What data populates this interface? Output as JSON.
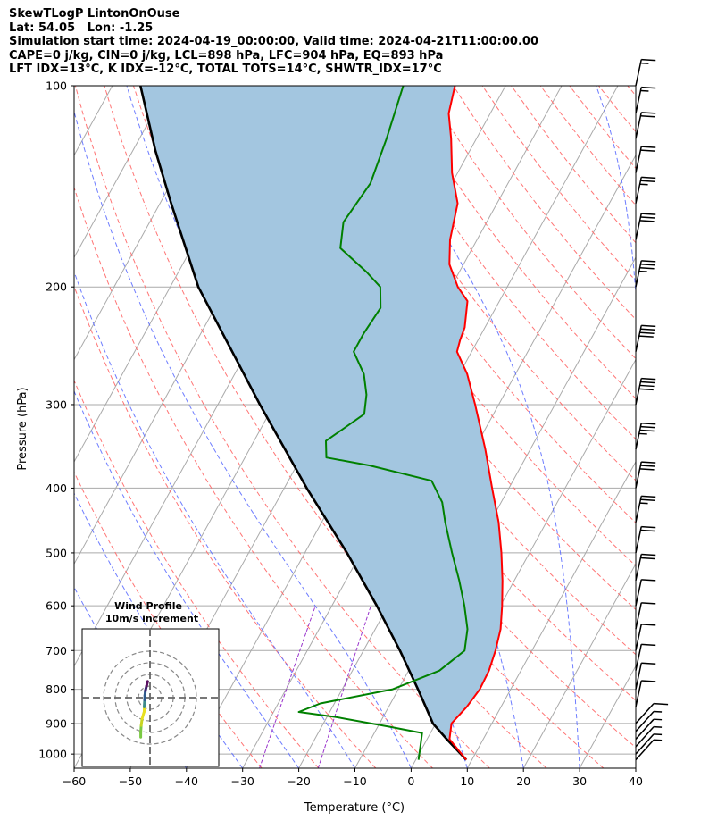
{
  "header": {
    "line1": "SkewTLogP LintonOnOuse",
    "line2": "Lat: 54.05   Lon: -1.25",
    "line3": "Simulation start time: 2024-04-19_00:00:00, Valid time: 2024-04-21T11:00:00.00",
    "line4": "CAPE=0 j/kg, CIN=0 j/kg, LCL=898 hPa, LFC=904 hPa, EQ=893 hPa",
    "line5": "LFT IDX=13°C, K IDX=-12°C, TOTAL TOTS=14°C, SHWTR_IDX=17°C"
  },
  "colors": {
    "temperature": "#ff0000",
    "dewpoint": "#008000",
    "parcel": "#000000",
    "cape_fill": "#a3c6e0",
    "dry_adiabat": "#ff6666",
    "moist_adiabat": "#5566ff",
    "mixing_ratio": "#9933cc",
    "isotherm": "#aaaaaa"
  },
  "chart_data": {
    "type": "line",
    "chart": "skew-t log-p",
    "xlabel": "Temperature (°C)",
    "ylabel": "Pressure (hPa)",
    "xlim": [
      -60,
      40
    ],
    "ylim": [
      1050,
      100
    ],
    "y_scale": "log",
    "grid": true,
    "x_ticks": [
      -60,
      -50,
      -40,
      -30,
      -20,
      -10,
      0,
      10,
      20,
      30,
      40
    ],
    "y_ticks": [
      1000,
      900,
      800,
      700,
      600,
      500,
      400,
      300,
      200,
      100
    ],
    "series": [
      {
        "role": "temperature",
        "points": [
          {
            "p": 1020,
            "t": 9
          },
          {
            "p": 950,
            "t": 4
          },
          {
            "p": 900,
            "t": 2.8
          },
          {
            "p": 850,
            "t": 3.9
          },
          {
            "p": 800,
            "t": 4.5
          },
          {
            "p": 750,
            "t": 4.3
          },
          {
            "p": 700,
            "t": 3.5
          },
          {
            "p": 650,
            "t": 2.3
          },
          {
            "p": 600,
            "t": 0.3
          },
          {
            "p": 550,
            "t": -2.1
          },
          {
            "p": 500,
            "t": -5.0
          },
          {
            "p": 450,
            "t": -8.5
          },
          {
            "p": 400,
            "t": -13.0
          },
          {
            "p": 350,
            "t": -18.0
          },
          {
            "p": 300,
            "t": -24.2
          },
          {
            "p": 270,
            "t": -28.6
          },
          {
            "p": 250,
            "t": -32.6
          },
          {
            "p": 240,
            "t": -33.2
          },
          {
            "p": 230,
            "t": -33.6
          },
          {
            "p": 210,
            "t": -35.7
          },
          {
            "p": 200,
            "t": -38.8
          },
          {
            "p": 185,
            "t": -42.5
          },
          {
            "p": 170,
            "t": -44.8
          },
          {
            "p": 150,
            "t": -47.0
          },
          {
            "p": 135,
            "t": -51.0
          },
          {
            "p": 120,
            "t": -54.5
          },
          {
            "p": 110,
            "t": -57.4
          },
          {
            "p": 100,
            "t": -59.0
          }
        ]
      },
      {
        "role": "dewpoint",
        "points": [
          {
            "p": 1020,
            "t": 0.5
          },
          {
            "p": 960,
            "t": -0.8
          },
          {
            "p": 930,
            "t": -1.5
          },
          {
            "p": 910,
            "t": -8.0
          },
          {
            "p": 880,
            "t": -18.5
          },
          {
            "p": 865,
            "t": -25.5
          },
          {
            "p": 840,
            "t": -22.5
          },
          {
            "p": 800,
            "t": -11.0
          },
          {
            "p": 750,
            "t": -4.5
          },
          {
            "p": 700,
            "t": -2.0
          },
          {
            "p": 650,
            "t": -3.6
          },
          {
            "p": 600,
            "t": -6.4
          },
          {
            "p": 550,
            "t": -9.8
          },
          {
            "p": 500,
            "t": -13.8
          },
          {
            "p": 450,
            "t": -18.0
          },
          {
            "p": 420,
            "t": -20.5
          },
          {
            "p": 390,
            "t": -24.5
          },
          {
            "p": 370,
            "t": -37.0
          },
          {
            "p": 360,
            "t": -45.5
          },
          {
            "p": 340,
            "t": -47.2
          },
          {
            "p": 310,
            "t": -43.0
          },
          {
            "p": 290,
            "t": -44.5
          },
          {
            "p": 270,
            "t": -47.0
          },
          {
            "p": 250,
            "t": -51.0
          },
          {
            "p": 235,
            "t": -51.0
          },
          {
            "p": 215,
            "t": -50.5
          },
          {
            "p": 200,
            "t": -52.6
          },
          {
            "p": 190,
            "t": -56.5
          },
          {
            "p": 175,
            "t": -63.5
          },
          {
            "p": 160,
            "t": -65.5
          },
          {
            "p": 140,
            "t": -64.5
          },
          {
            "p": 120,
            "t": -66.0
          },
          {
            "p": 100,
            "t": -68.2
          }
        ]
      },
      {
        "role": "parcel",
        "points": [
          {
            "p": 1020,
            "t": 9.0
          },
          {
            "p": 950,
            "t": 3.5
          },
          {
            "p": 900,
            "t": -0.5
          },
          {
            "p": 850,
            "t": -3.4
          },
          {
            "p": 800,
            "t": -6.5
          },
          {
            "p": 700,
            "t": -13.5
          },
          {
            "p": 600,
            "t": -22.0
          },
          {
            "p": 500,
            "t": -32.5
          },
          {
            "p": 400,
            "t": -46.0
          },
          {
            "p": 300,
            "t": -62.5
          },
          {
            "p": 200,
            "t": -85.0
          },
          {
            "p": 150,
            "t": -98.0
          },
          {
            "p": 125,
            "t": -106.0
          },
          {
            "p": 100,
            "t": -115.0
          }
        ]
      }
    ],
    "wind_barbs": [
      {
        "p": 1020,
        "speed_kt": 5
      },
      {
        "p": 1000,
        "speed_kt": 5
      },
      {
        "p": 975,
        "speed_kt": 5
      },
      {
        "p": 950,
        "speed_kt": 5
      },
      {
        "p": 925,
        "speed_kt": 5
      },
      {
        "p": 900,
        "speed_kt": 10
      },
      {
        "p": 850,
        "speed_kt": 10
      },
      {
        "p": 800,
        "speed_kt": 10
      },
      {
        "p": 750,
        "speed_kt": 10
      },
      {
        "p": 700,
        "speed_kt": 10
      },
      {
        "p": 650,
        "speed_kt": 10
      },
      {
        "p": 600,
        "speed_kt": 10
      },
      {
        "p": 550,
        "speed_kt": 20
      },
      {
        "p": 500,
        "speed_kt": 20
      },
      {
        "p": 450,
        "speed_kt": 25
      },
      {
        "p": 400,
        "speed_kt": 30
      },
      {
        "p": 350,
        "speed_kt": 35
      },
      {
        "p": 300,
        "speed_kt": 40
      },
      {
        "p": 250,
        "speed_kt": 40
      },
      {
        "p": 200,
        "speed_kt": 35
      },
      {
        "p": 170,
        "speed_kt": 30
      },
      {
        "p": 150,
        "speed_kt": 25
      },
      {
        "p": 135,
        "speed_kt": 20
      },
      {
        "p": 120,
        "speed_kt": 20
      },
      {
        "p": 110,
        "speed_kt": 15
      },
      {
        "p": 100,
        "speed_kt": 15
      }
    ]
  },
  "hodograph": {
    "title": "Wind Profile",
    "subtitle": "10m/s increment",
    "ring_spacing_ms": 10,
    "colors": [
      "#7ac943",
      "#c8d422",
      "#e8e020",
      "#3d8a8a",
      "#2f5a8c",
      "#3a2470",
      "#5a1060"
    ],
    "points": [
      [
        -8,
        -34
      ],
      [
        -8,
        -30
      ],
      [
        -7.6,
        -24
      ],
      [
        -6.8,
        -18
      ],
      [
        -5,
        -12
      ],
      [
        -5,
        -8
      ],
      [
        -4.6,
        -2
      ],
      [
        -4.4,
        2
      ],
      [
        -4,
        6
      ],
      [
        -3,
        10
      ],
      [
        -2,
        14
      ]
    ]
  }
}
